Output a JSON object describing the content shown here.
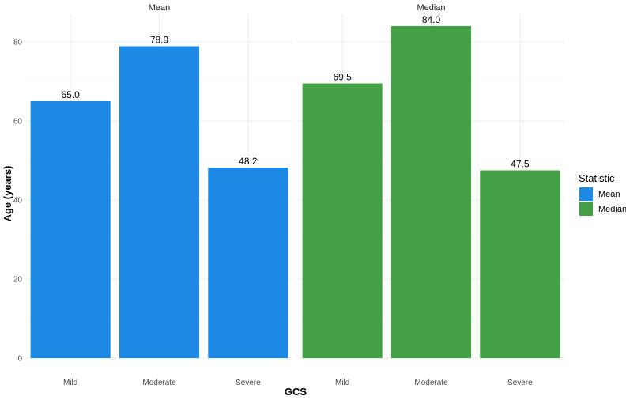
{
  "chart_data": {
    "type": "bar",
    "categories": [
      "Mild",
      "Moderate",
      "Severe"
    ],
    "facets": [
      {
        "strip_label": "Mean",
        "values": [
          65.0,
          78.9,
          48.2
        ],
        "value_labels": [
          "65.0",
          "78.9",
          "48.2"
        ],
        "color": "#1E88E5"
      },
      {
        "strip_label": "Median",
        "values": [
          69.5,
          84.0,
          47.5
        ],
        "value_labels": [
          "69.5",
          "84.0",
          "47.5"
        ],
        "color": "#43A047"
      }
    ],
    "xlabel": "GCS",
    "ylabel": "Age (years)",
    "ylim": [
      0,
      87
    ],
    "yticks": [
      0,
      20,
      40,
      60,
      80
    ],
    "grid": true,
    "legend": {
      "title": "Statistic",
      "position": "right",
      "items": [
        {
          "label": "Mean",
          "color": "#1E88E5"
        },
        {
          "label": "Median",
          "color": "#43A047"
        }
      ]
    }
  }
}
